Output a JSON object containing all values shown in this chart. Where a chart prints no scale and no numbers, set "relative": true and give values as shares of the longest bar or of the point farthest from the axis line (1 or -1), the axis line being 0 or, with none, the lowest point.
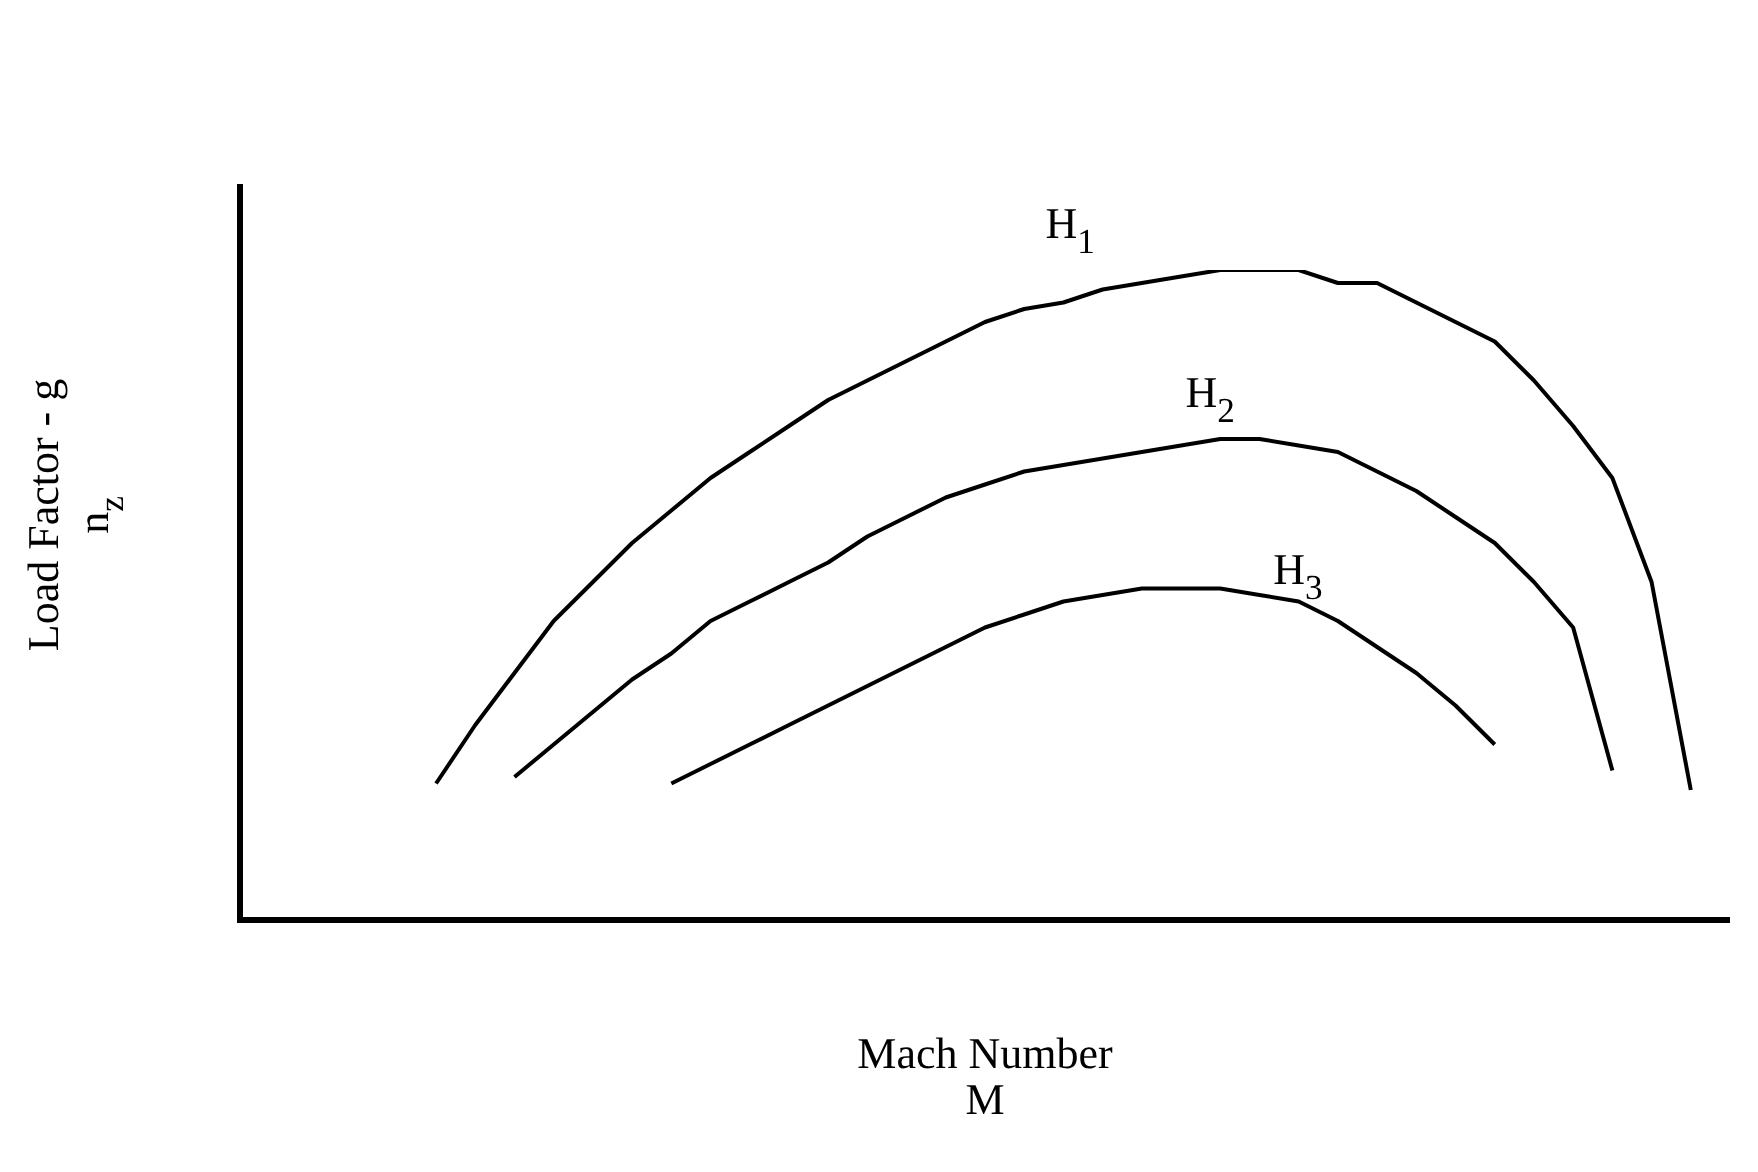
{
  "chart_data": {
    "type": "line",
    "relative": true,
    "xlabel": "Mach Number\nM",
    "ylabel": "Load Factor - g\nn$_{z}$",
    "legend": false,
    "marker": "none",
    "line_style": "solid",
    "grid": false,
    "tick_labels": false,
    "categories": [
      null,
      null,
      null,
      null,
      null,
      null,
      null,
      null,
      null,
      null,
      null,
      null,
      null,
      null,
      null,
      null,
      null,
      null,
      null,
      null,
      null,
      null,
      null,
      null,
      null,
      null,
      null,
      null,
      null,
      null,
      null,
      null,
      null,
      null,
      null,
      null,
      null,
      null,
      null
    ],
    "series": [
      {
        "name": "H$_{1}$",
        "color": "#000000",
        "values": [
          null,
          null,
          null,
          null,
          null,
          0.21,
          0.3,
          0.38,
          0.46,
          0.52,
          0.58,
          0.63,
          0.68,
          0.72,
          0.76,
          0.8,
          0.83,
          0.86,
          0.89,
          0.92,
          0.94,
          0.95,
          0.97,
          0.98,
          0.99,
          1,
          1,
          1,
          0.98,
          0.98,
          0.95,
          0.92,
          0.89,
          0.83,
          0.76,
          0.68,
          0.52,
          0.2,
          null
        ]
      },
      {
        "name": "H$_{2}$",
        "color": "#000000",
        "values": [
          null,
          null,
          null,
          null,
          null,
          null,
          null,
          0.22,
          0.27,
          0.32,
          0.37,
          0.41,
          0.46,
          0.49,
          0.52,
          0.55,
          0.59,
          0.62,
          0.65,
          0.67,
          0.69,
          0.7,
          0.71,
          0.72,
          0.73,
          0.74,
          0.74,
          0.73,
          0.72,
          0.69,
          0.66,
          0.62,
          0.58,
          0.52,
          0.45,
          0.23,
          null,
          null,
          null
        ]
      },
      {
        "name": "H$_{3}$",
        "color": "#000000",
        "values": [
          null,
          null,
          null,
          null,
          null,
          null,
          null,
          null,
          null,
          null,
          null,
          0.21,
          0.24,
          0.27,
          0.3,
          0.33,
          0.36,
          0.39,
          0.42,
          0.45,
          0.47,
          0.49,
          0.5,
          0.51,
          0.51,
          0.51,
          0.5,
          0.49,
          0.46,
          0.42,
          0.38,
          0.33,
          0.27,
          null,
          null,
          null,
          null,
          null,
          null
        ]
      }
    ]
  }
}
